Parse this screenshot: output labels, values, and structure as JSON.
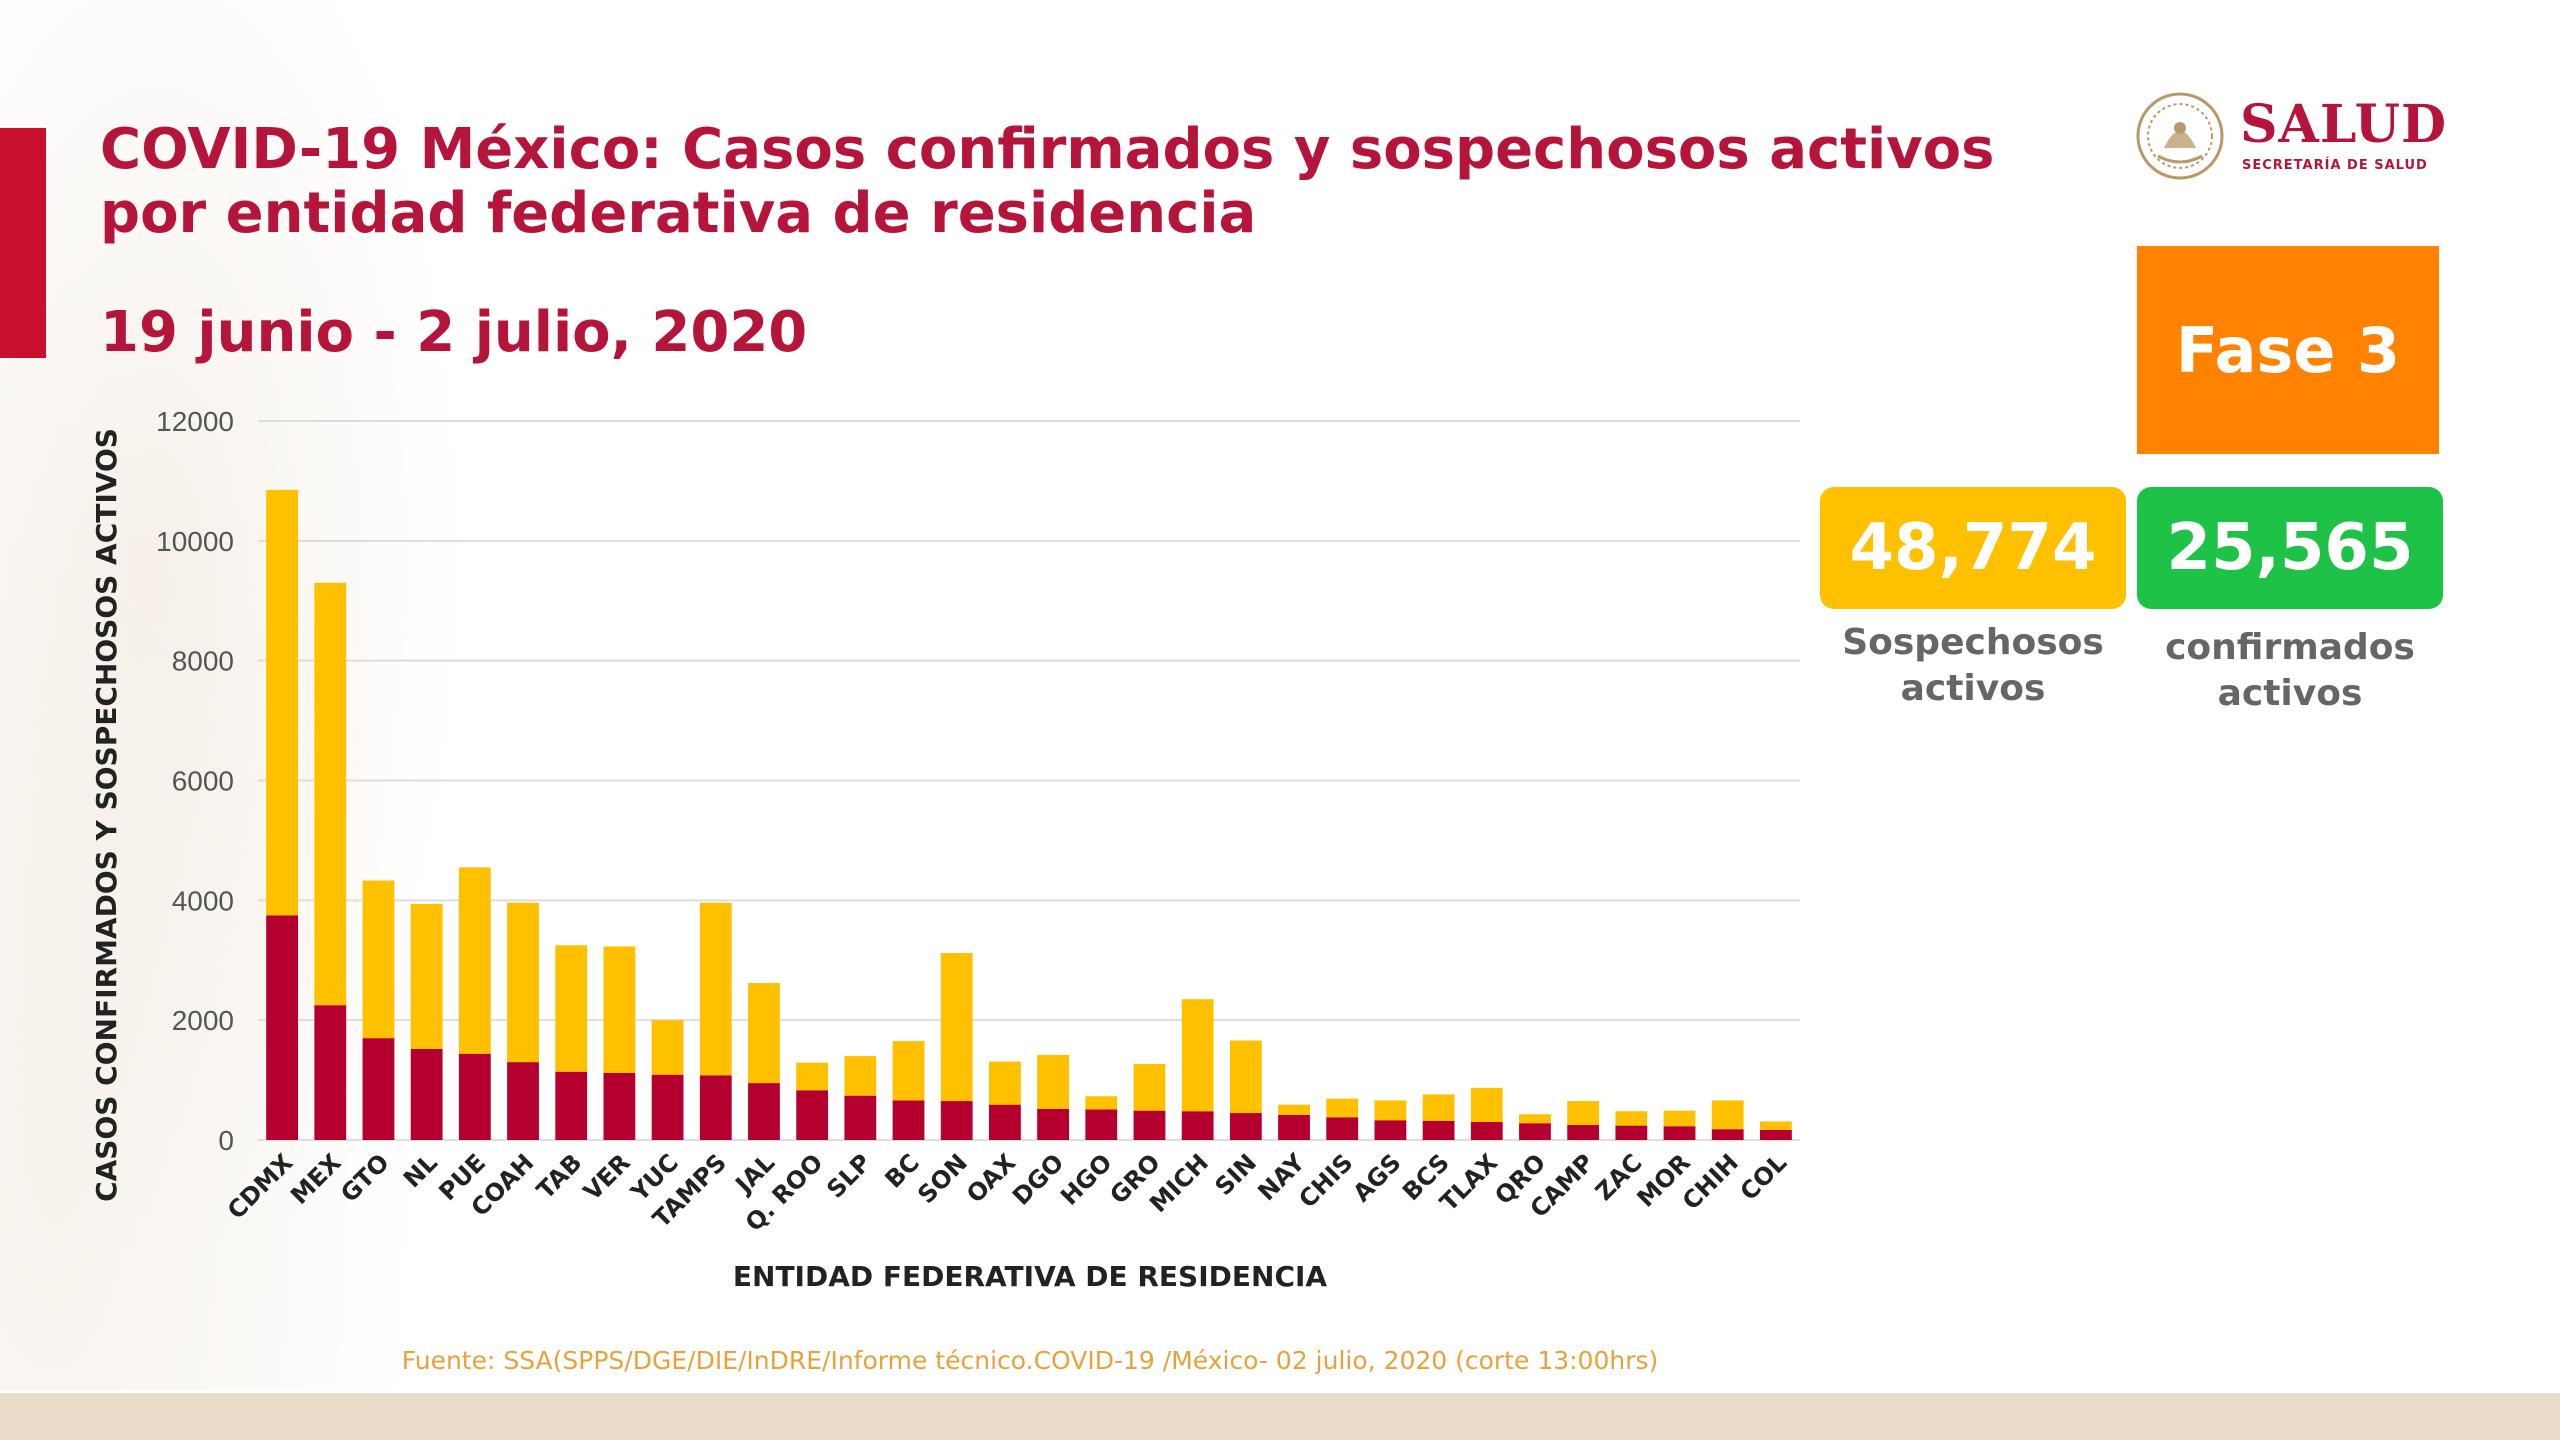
{
  "header": {
    "title": "COVID-19 México: Casos confirmados y sospechosos activos\npor entidad federativa de residencia",
    "date_range": "19 junio - 2 julio, 2020"
  },
  "logo": {
    "wordmark": "SALUD",
    "subtitle": "SECRETARÍA DE SALUD",
    "seal_icon": "mexico-seal-icon"
  },
  "phase": {
    "label": "Fase 3",
    "color": "#ff8200"
  },
  "stats": {
    "suspected": {
      "value": "48,774",
      "label": "Sospechosos\nactivos",
      "color": "#ffc000"
    },
    "confirmed": {
      "value": "25,565",
      "label": "confirmados\nactivos",
      "color": "#1ec246"
    }
  },
  "source": "Fuente: SSA(SPPS/DGE/DIE/InDRE/Informe técnico.COVID-19 /México- 02 julio, 2020 (corte 13:00hrs)",
  "chart_data": {
    "type": "bar",
    "stacked": true,
    "xlabel": "ENTIDAD FEDERATIVA DE RESIDENCIA",
    "ylabel": "CASOS CONFIRMADOS Y SOSPECHOSOS ACTIVOS",
    "ylim": [
      0,
      12000
    ],
    "yticks": [
      0,
      2000,
      4000,
      6000,
      8000,
      10000,
      12000
    ],
    "grid": true,
    "categories": [
      "CDMX",
      "MEX",
      "GTO",
      "NL",
      "PUE",
      "COAH",
      "TAB",
      "VER",
      "YUC",
      "TAMPS",
      "JAL",
      "Q. ROO",
      "SLP",
      "BC",
      "SON",
      "OAX",
      "DGO",
      "HGO",
      "GRO",
      "MICH",
      "SIN",
      "NAY",
      "CHIS",
      "AGS",
      "BCS",
      "TLAX",
      "QRO",
      "CAMP",
      "ZAC",
      "MOR",
      "CHIH",
      "COL"
    ],
    "series": [
      {
        "color": "#b5002f",
        "values": [
          3750,
          2250,
          1700,
          1520,
          1440,
          1300,
          1140,
          1120,
          1090,
          1080,
          950,
          830,
          740,
          660,
          650,
          590,
          520,
          510,
          490,
          480,
          450,
          420,
          380,
          330,
          320,
          300,
          280,
          250,
          240,
          230,
          180,
          170
        ]
      },
      {
        "color": "#ffc000",
        "values": [
          7100,
          7050,
          2630,
          2420,
          3110,
          2660,
          2110,
          2110,
          910,
          2880,
          1670,
          460,
          660,
          990,
          2470,
          720,
          900,
          220,
          780,
          1870,
          1210,
          170,
          310,
          330,
          440,
          570,
          150,
          400,
          240,
          260,
          480,
          140
        ]
      }
    ]
  }
}
